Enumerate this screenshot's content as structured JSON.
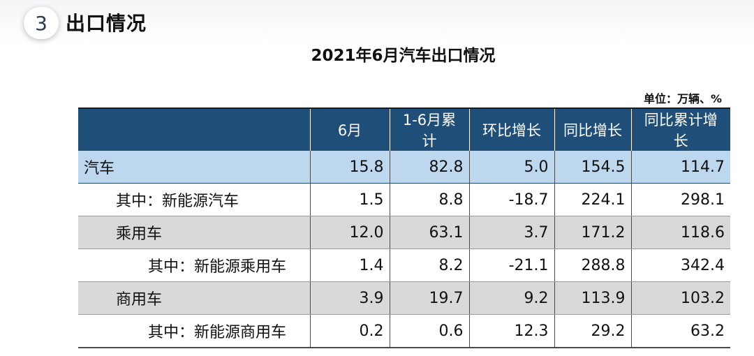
{
  "section": {
    "number": "3",
    "title": "出口情况"
  },
  "table_title": "2021年6月汽车出口情况",
  "unit": "单位：万辆、%",
  "columns": [
    "",
    "6月",
    "1-6月累计",
    "环比增长",
    "同比增长",
    "同比累计增长"
  ],
  "rows": [
    {
      "label": "汽车",
      "values": [
        "15.8",
        "82.8",
        "5.0",
        "154.5",
        "114.7"
      ]
    },
    {
      "label": "其中：新能源汽车",
      "values": [
        "1.5",
        "8.8",
        "-18.7",
        "224.1",
        "298.1"
      ]
    },
    {
      "label": "乘用车",
      "values": [
        "12.0",
        "63.1",
        "3.7",
        "171.2",
        "118.6"
      ]
    },
    {
      "label": "其中：新能源乘用车",
      "values": [
        "1.4",
        "8.2",
        "-21.1",
        "288.8",
        "342.4"
      ]
    },
    {
      "label": "商用车",
      "values": [
        "3.9",
        "19.7",
        "9.2",
        "113.9",
        "103.2"
      ]
    },
    {
      "label": "其中：新能源商用车",
      "values": [
        "0.2",
        "0.6",
        "12.3",
        "29.2",
        "63.2"
      ]
    }
  ],
  "colors": {
    "header_bg": "#1f4e79",
    "highlight_row": "#bdd7ee",
    "gray_row": "#d9d9d9"
  }
}
